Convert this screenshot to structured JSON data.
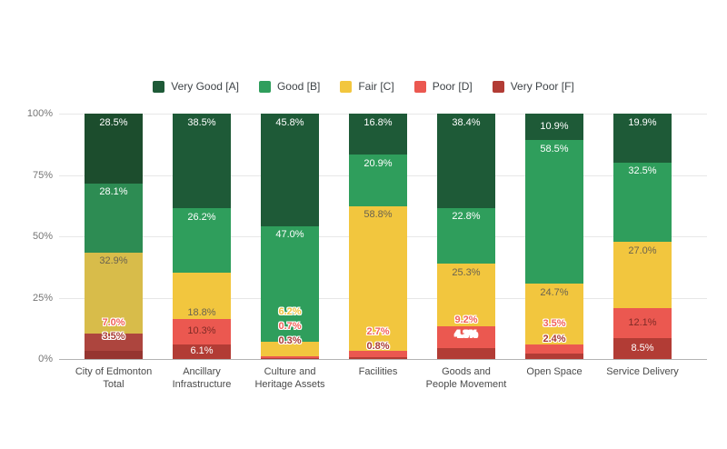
{
  "chart_data": {
    "type": "bar",
    "stacked": true,
    "title": "",
    "xlabel": "",
    "ylabel": "",
    "ylim": [
      0,
      100
    ],
    "grid": true,
    "legend_position": "top",
    "value_suffix": "%",
    "y_ticks": [
      "0%",
      "25%",
      "50%",
      "75%",
      "100%"
    ],
    "categories": [
      "City of Edmonton Total",
      "Ancillary Infrastructure",
      "Culture and Heritage Assets",
      "Facilities",
      "Goods and People Movement",
      "Open Space",
      "Service Delivery"
    ],
    "category_lines": [
      [
        "City of Edmonton",
        "Total"
      ],
      [
        "Ancillary",
        "Infrastructure"
      ],
      [
        "Culture and",
        "Heritage Assets"
      ],
      [
        "Facilities"
      ],
      [
        "Goods and",
        "People Movement"
      ],
      [
        "Open Space"
      ],
      [
        "Service Delivery"
      ]
    ],
    "series": [
      {
        "name": "Very Good [A]",
        "color": "#1E5A37",
        "values": [
          28.5,
          38.5,
          45.8,
          16.8,
          38.4,
          10.9,
          19.9
        ]
      },
      {
        "name": "Good [B]",
        "color": "#2F9E5C",
        "values": [
          28.1,
          26.2,
          47.0,
          20.9,
          22.8,
          58.5,
          32.5
        ]
      },
      {
        "name": "Fair [C]",
        "color": "#F2C63E",
        "values": [
          32.9,
          18.8,
          6.2,
          58.8,
          25.3,
          24.7,
          27.0
        ]
      },
      {
        "name": "Poor [D]",
        "color": "#EB5850",
        "values": [
          7.0,
          10.3,
          0.7,
          2.7,
          9.2,
          3.5,
          12.1
        ]
      },
      {
        "name": "Very Poor [F]",
        "color": "#B23C35",
        "values": [
          3.5,
          6.1,
          0.3,
          0.8,
          4.3,
          2.4,
          8.5
        ]
      }
    ],
    "total_bar_colors": [
      "#1C4D2D",
      "#2D8C53",
      "#D8BC4A",
      "#AD453E",
      "#963530"
    ]
  }
}
